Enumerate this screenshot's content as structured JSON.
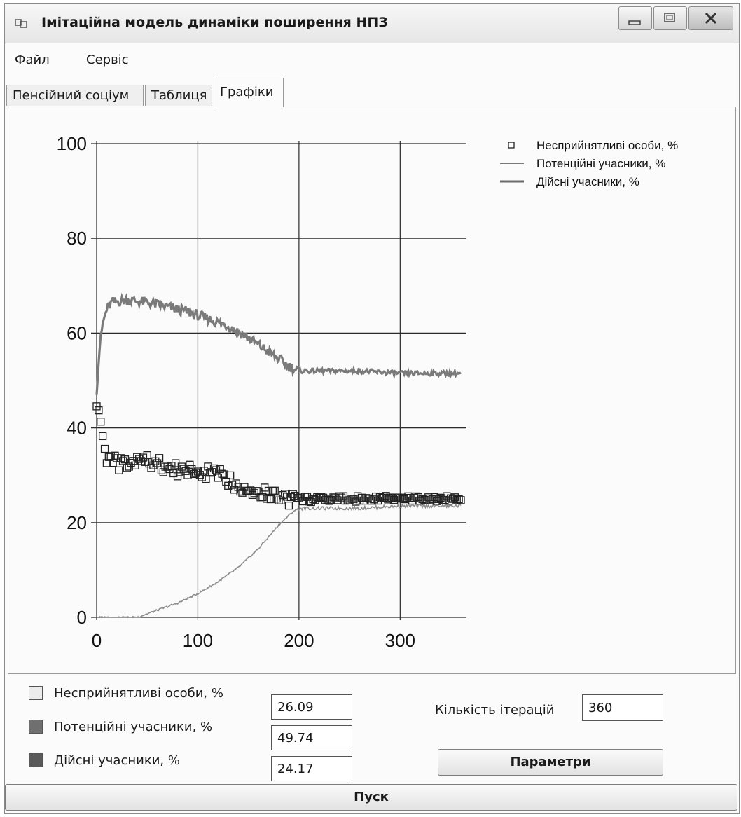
{
  "window": {
    "title": "Імітаційна модель динаміки поширення НПЗ",
    "controls": [
      "minimize-icon",
      "maximize-icon",
      "close-icon"
    ]
  },
  "menu": {
    "items": [
      "Файл",
      "Сервіс"
    ]
  },
  "tabs": {
    "items": [
      "Пенсійний соціум",
      "Таблиця",
      "Графіки"
    ],
    "active": "Графіки"
  },
  "chart_data": {
    "type": "scatter",
    "xlim": [
      0,
      360
    ],
    "ylim": [
      0,
      100
    ],
    "xticks": [
      "0",
      "100",
      "200",
      "300"
    ],
    "yticks": [
      "0",
      "20",
      "40",
      "60",
      "80",
      "100"
    ],
    "grid": true,
    "legend_position": "top-right",
    "series": [
      {
        "name": "Несприйнятливі особи, %",
        "marker": "square",
        "points": [
          [
            0,
            45.5
          ],
          [
            2,
            43.5
          ],
          [
            4,
            42
          ],
          [
            6,
            37.5
          ],
          [
            8,
            35.5
          ],
          [
            10,
            34
          ],
          [
            14,
            33
          ],
          [
            20,
            32.5
          ],
          [
            30,
            32
          ],
          [
            40,
            33
          ],
          [
            50,
            33
          ],
          [
            60,
            32.5
          ],
          [
            70,
            31.5
          ],
          [
            80,
            31
          ],
          [
            90,
            31
          ],
          [
            100,
            30.5
          ],
          [
            110,
            30.5
          ],
          [
            120,
            30
          ],
          [
            130,
            29
          ],
          [
            140,
            28
          ],
          [
            150,
            27
          ],
          [
            160,
            26.5
          ],
          [
            170,
            26
          ],
          [
            180,
            25.5
          ],
          [
            190,
            25
          ],
          [
            200,
            25
          ],
          [
            220,
            24.8
          ],
          [
            240,
            25
          ],
          [
            260,
            25
          ],
          [
            280,
            25.2
          ],
          [
            300,
            25
          ],
          [
            320,
            25
          ],
          [
            340,
            25
          ],
          [
            360,
            25
          ]
        ]
      },
      {
        "name": "Потенційні учасники, %",
        "marker": "line",
        "points": [
          [
            0,
            48
          ],
          [
            3,
            57
          ],
          [
            6,
            62
          ],
          [
            10,
            65
          ],
          [
            15,
            66.5
          ],
          [
            30,
            67
          ],
          [
            50,
            66.5
          ],
          [
            70,
            65.5
          ],
          [
            90,
            64.5
          ],
          [
            110,
            63
          ],
          [
            130,
            61.5
          ],
          [
            150,
            59
          ],
          [
            170,
            56
          ],
          [
            190,
            53
          ],
          [
            200,
            52
          ],
          [
            230,
            52
          ],
          [
            260,
            52
          ],
          [
            300,
            51.5
          ],
          [
            330,
            51.5
          ],
          [
            360,
            51.5
          ]
        ]
      },
      {
        "name": "Дійсні учасники, %",
        "marker": "line",
        "points": [
          [
            0,
            0
          ],
          [
            20,
            0
          ],
          [
            40,
            0
          ],
          [
            60,
            1.5
          ],
          [
            80,
            3
          ],
          [
            100,
            5
          ],
          [
            120,
            7.5
          ],
          [
            140,
            10.5
          ],
          [
            160,
            14.5
          ],
          [
            180,
            19.5
          ],
          [
            195,
            22.5
          ],
          [
            200,
            23
          ],
          [
            230,
            23
          ],
          [
            260,
            23
          ],
          [
            300,
            23.5
          ],
          [
            330,
            23.5
          ],
          [
            360,
            23.5
          ]
        ]
      }
    ]
  },
  "bottom": {
    "legend": [
      {
        "label": "Несприйнятливі особи, %",
        "value": "26.09",
        "color": "#ececec"
      },
      {
        "label": "Потенційні учасники, %",
        "value": "49.74",
        "color": "#6f6f6f"
      },
      {
        "label": "Дійсні учасники, %",
        "value": "24.17",
        "color": "#5a5a5a"
      }
    ],
    "iterations_label": "Кількість ітерацій",
    "iterations_value": "360",
    "params_button": "Параметри",
    "start_button": "Пуск"
  }
}
